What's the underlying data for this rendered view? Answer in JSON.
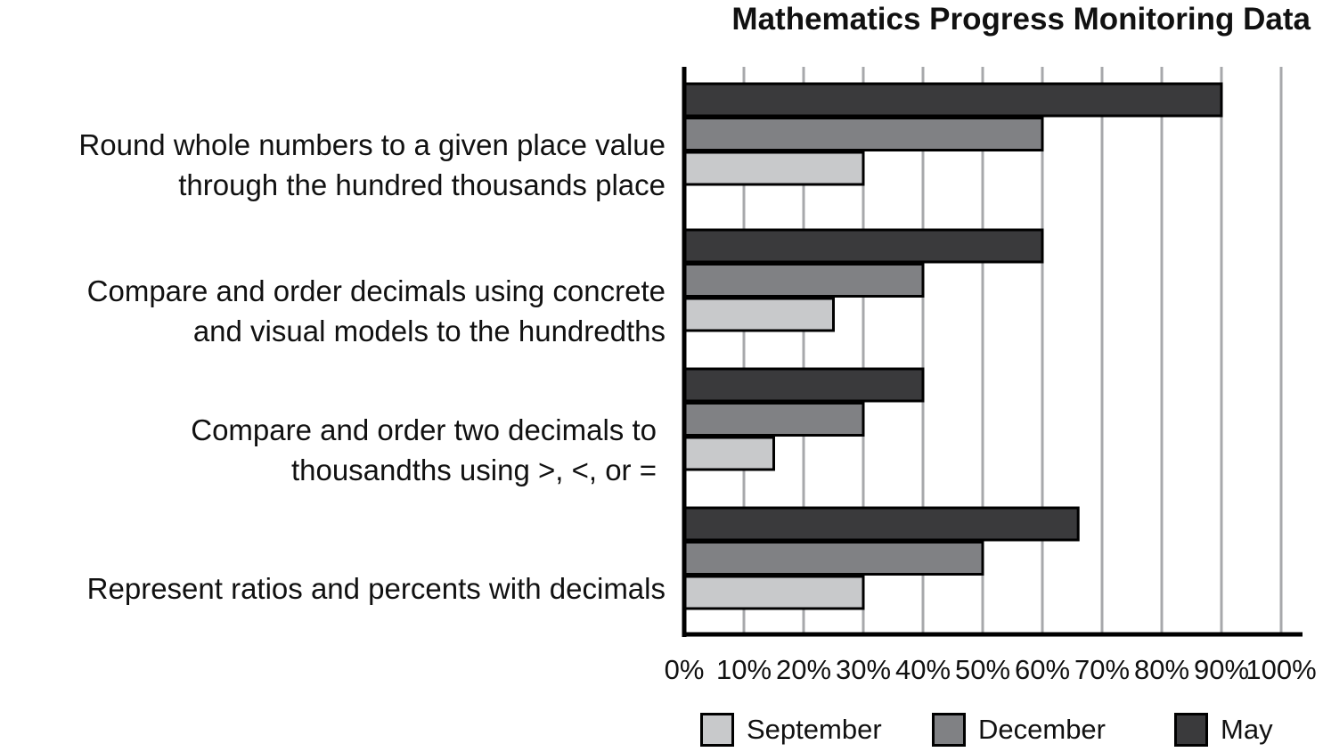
{
  "chart_data": {
    "type": "bar",
    "orientation": "horizontal",
    "title": "Mathematics Progress Monitoring Data",
    "categories": [
      [
        "Round whole numbers to a given place value",
        "through the hundred thousands place"
      ],
      [
        "Compare and order decimals using concrete",
        "and visual models to the hundredths"
      ],
      [
        "Compare and order two decimals to",
        "thousandths using  >, <, or ="
      ],
      [
        "Represent ratios and percents with decimals"
      ]
    ],
    "series": [
      {
        "name": "May",
        "color": "#3a3a3c",
        "values": [
          90,
          60,
          40,
          66
        ]
      },
      {
        "name": "December",
        "color": "#808184",
        "values": [
          60,
          40,
          30,
          50
        ]
      },
      {
        "name": "September",
        "color": "#c8c9cb",
        "values": [
          30,
          25,
          15,
          30
        ]
      }
    ],
    "legend_order": [
      "September",
      "December",
      "May"
    ],
    "xlim": [
      0,
      100
    ],
    "xticks": [
      "0%",
      "10%",
      "20%",
      "30%",
      "40%",
      "50%",
      "60%",
      "70%",
      "80%",
      "90%",
      "100%"
    ],
    "grid": "vertical",
    "legend_position": "bottom"
  }
}
